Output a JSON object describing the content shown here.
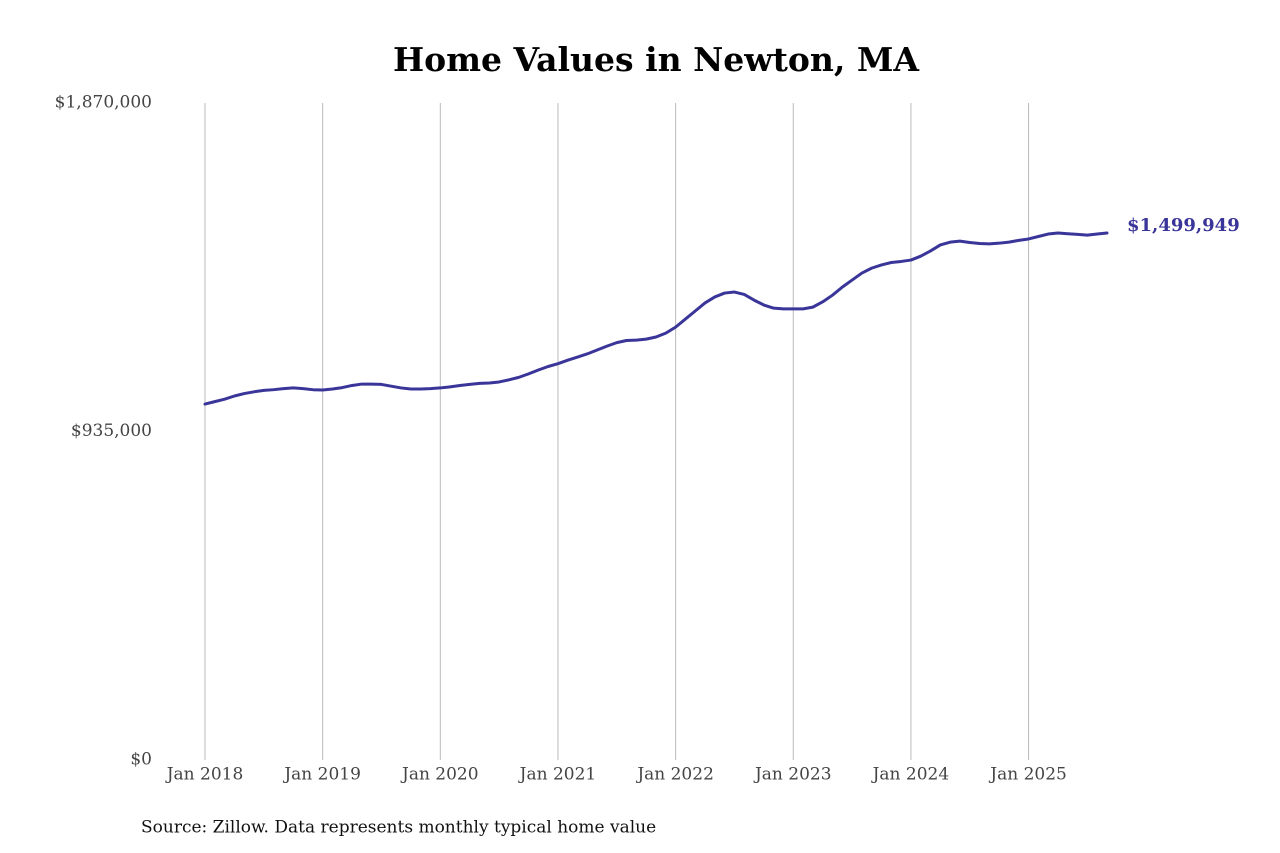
{
  "chart_data": {
    "type": "line",
    "title": "Home Values in Newton, MA",
    "source": "Source: Zillow. Data represents monthly typical home value",
    "x": [
      "2018-01",
      "2018-02",
      "2018-03",
      "2018-04",
      "2018-05",
      "2018-06",
      "2018-07",
      "2018-08",
      "2018-09",
      "2018-10",
      "2018-11",
      "2018-12",
      "2019-01",
      "2019-02",
      "2019-03",
      "2019-04",
      "2019-05",
      "2019-06",
      "2019-07",
      "2019-08",
      "2019-09",
      "2019-10",
      "2019-11",
      "2019-12",
      "2020-01",
      "2020-02",
      "2020-03",
      "2020-04",
      "2020-05",
      "2020-06",
      "2020-07",
      "2020-08",
      "2020-09",
      "2020-10",
      "2020-11",
      "2020-12",
      "2021-01",
      "2021-02",
      "2021-03",
      "2021-04",
      "2021-05",
      "2021-06",
      "2021-07",
      "2021-08",
      "2021-09",
      "2021-10",
      "2021-11",
      "2021-12",
      "2022-01",
      "2022-02",
      "2022-03",
      "2022-04",
      "2022-05",
      "2022-06",
      "2022-07",
      "2022-08",
      "2022-09",
      "2022-10",
      "2022-11",
      "2022-12",
      "2023-01",
      "2023-02",
      "2023-03",
      "2023-04",
      "2023-05",
      "2023-06",
      "2023-07",
      "2023-08",
      "2023-09",
      "2023-10",
      "2023-11",
      "2023-12",
      "2024-01",
      "2024-02",
      "2024-03",
      "2024-04",
      "2024-05",
      "2024-06",
      "2024-07",
      "2024-08",
      "2024-09",
      "2024-10",
      "2024-11",
      "2024-12",
      "2025-01",
      "2025-02",
      "2025-03",
      "2025-04",
      "2025-05",
      "2025-06",
      "2025-07",
      "2025-08",
      "2025-09"
    ],
    "values": [
      1013000,
      1020000,
      1027000,
      1036000,
      1043000,
      1048000,
      1052000,
      1054000,
      1057000,
      1059000,
      1057000,
      1054000,
      1053000,
      1056000,
      1060000,
      1066000,
      1070000,
      1070000,
      1069000,
      1064000,
      1059000,
      1056000,
      1056000,
      1057000,
      1059000,
      1062000,
      1066000,
      1069000,
      1072000,
      1073000,
      1076000,
      1082000,
      1089000,
      1099000,
      1110000,
      1120000,
      1128000,
      1138000,
      1147000,
      1156000,
      1167000,
      1178000,
      1188000,
      1194000,
      1195000,
      1198000,
      1204000,
      1215000,
      1232000,
      1255000,
      1278000,
      1301000,
      1318000,
      1329000,
      1332000,
      1325000,
      1309000,
      1295000,
      1286000,
      1284000,
      1284000,
      1284000,
      1289000,
      1304000,
      1323000,
      1346000,
      1366000,
      1386000,
      1400000,
      1409000,
      1416000,
      1419000,
      1423000,
      1434000,
      1449000,
      1466000,
      1474000,
      1477000,
      1473000,
      1470000,
      1469000,
      1471000,
      1474000,
      1479000,
      1483000,
      1490000,
      1497000,
      1500000,
      1498000,
      1496000,
      1494000,
      1497000,
      1499949
    ],
    "value_labels": [
      null,
      null,
      null,
      null,
      null,
      null,
      null,
      null,
      null,
      null,
      null,
      null,
      null,
      null,
      null,
      null,
      null,
      null,
      null,
      null,
      null,
      null,
      null,
      null,
      null,
      null,
      null,
      null,
      null,
      null,
      null,
      null,
      null,
      null,
      null,
      null,
      null,
      null,
      null,
      null,
      null,
      null,
      null,
      null,
      null,
      null,
      null,
      null,
      null,
      null,
      null,
      null,
      null,
      null,
      null,
      null,
      null,
      null,
      null,
      null,
      null,
      null,
      null,
      null,
      null,
      null,
      null,
      null,
      null,
      null,
      null,
      null,
      null,
      null,
      null,
      null,
      null,
      null,
      null,
      null,
      null,
      null,
      null,
      null,
      null,
      null,
      null,
      null,
      null,
      null,
      null,
      null,
      "$1,499,949"
    ],
    "color": "#3a3599",
    "xlim": [
      "2018-01",
      "2025-09"
    ],
    "xticks": [
      {
        "value": "2018-01",
        "label": "Jan 2018"
      },
      {
        "value": "2019-01",
        "label": "Jan 2019"
      },
      {
        "value": "2020-01",
        "label": "Jan 2020"
      },
      {
        "value": "2021-01",
        "label": "Jan 2021"
      },
      {
        "value": "2022-01",
        "label": "Jan 2022"
      },
      {
        "value": "2023-01",
        "label": "Jan 2023"
      },
      {
        "value": "2024-01",
        "label": "Jan 2024"
      },
      {
        "value": "2025-01",
        "label": "Jan 2025"
      }
    ],
    "ylim": [
      0,
      1870000
    ],
    "yticks": [
      {
        "value": 0,
        "label": "$0"
      },
      {
        "value": 935000,
        "label": "$935,000"
      },
      {
        "value": 1870000,
        "label": "$1,870,000"
      }
    ],
    "grid": "x"
  }
}
